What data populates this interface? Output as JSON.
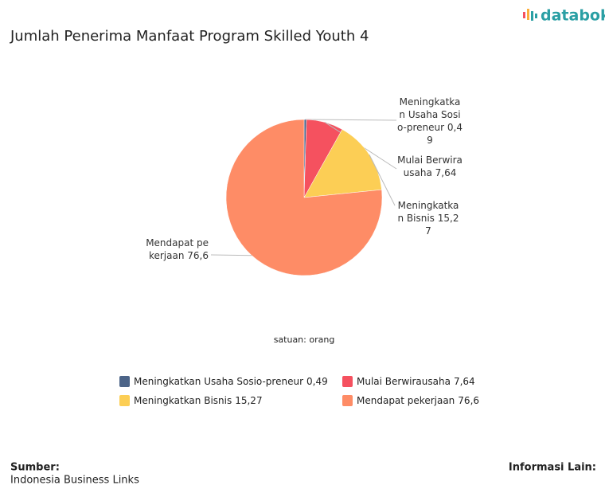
{
  "brand": "databoks",
  "chart_data": {
    "type": "pie",
    "title": "Jumlah Penerima Manfaat Program Skilled Youth 4",
    "categories": [
      "Meningkatkan Usaha Sosio-preneur",
      "Mulai Berwirausaha",
      "Meningkatkan Bisnis",
      "Mendapat pekerjaan"
    ],
    "values": [
      0.49,
      7.64,
      15.27,
      76.6
    ],
    "value_labels": [
      "0,49",
      "7,64",
      "15,27",
      "76,6"
    ],
    "colors": [
      "#4c6488",
      "#f5515f",
      "#fcce55",
      "#fe8c66"
    ],
    "note": "satuan: orang",
    "legend": "bottom"
  },
  "footer": {
    "source_label": "Sumber:",
    "source": "Indonesia Business Links",
    "info_label": "Informasi Lain:"
  }
}
